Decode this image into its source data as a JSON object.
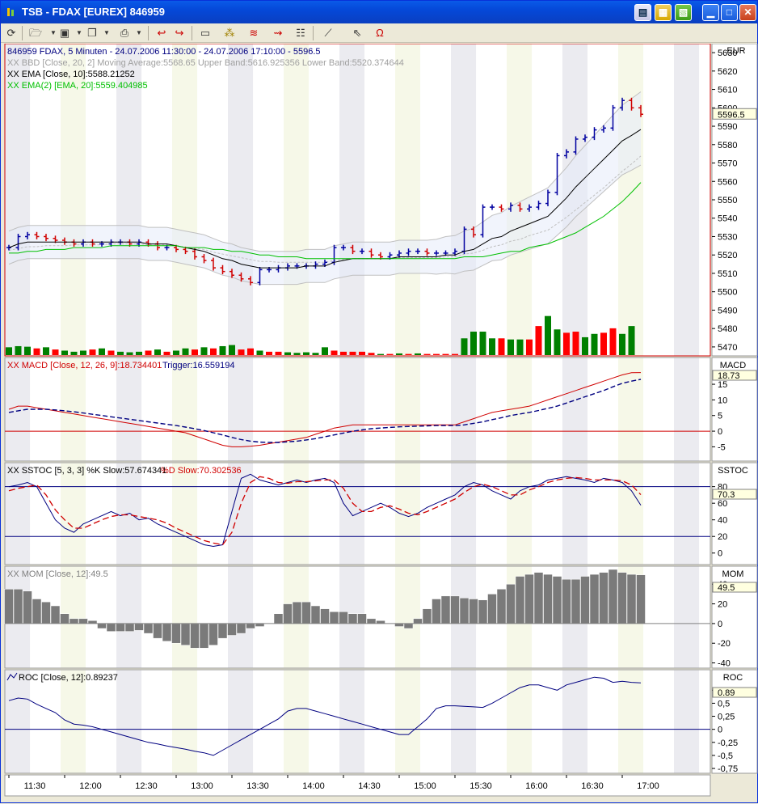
{
  "window": {
    "title": "TSB - FDAX [EUREX] 846959",
    "colors": {
      "titlebar": "#0548d8",
      "up": "#0000a0",
      "down": "#d00000",
      "vol_up": "#008000",
      "vol_down": "#ff0000",
      "ema": "#000000",
      "ema2": "#00c000",
      "macd": "#d00000",
      "trigger": "#000080",
      "band": "#e6ebfa"
    }
  },
  "toolbar": {
    "icons": [
      "refresh-icon",
      "open-folder-icon",
      "save-icon",
      "copy-icon",
      "print-icon",
      "chart-back-icon",
      "chart-forward-icon",
      "chart-type-icon",
      "indicator-icon",
      "drawing-icon",
      "trend-icon",
      "properties-icon",
      "line-tool-icon",
      "pointer-icon",
      "magnet-icon"
    ]
  },
  "main_panel": {
    "axis_unit": "EUR",
    "legend": [
      {
        "text": "846959  FDAX, 5 Minuten - 24.07.2006 11:30:00 - 24.07.2006 17:10:00 - 5596.5",
        "color": "#000080"
      },
      {
        "text": "XX BBD [Close, 20, 2] Moving Average:5568.65 Upper Band:5616.925356 Lower Band:5520.374644",
        "color": "#a0a0a0"
      },
      {
        "text": "XX EMA [Close, 10]:5588.21252",
        "color": "#000000"
      },
      {
        "text": "XX EMA(2) [EMA, 20]:5559.404985",
        "color": "#00c000"
      }
    ],
    "last_price": "5596.5",
    "y_ticks": [
      "5630",
      "5620",
      "5610",
      "5600",
      "5590",
      "5580",
      "5570",
      "5560",
      "5550",
      "5540",
      "5530",
      "5520",
      "5510",
      "5500",
      "5490",
      "5480",
      "5470"
    ]
  },
  "macd_panel": {
    "name": "MACD",
    "legend_macd": "XX MACD [Close, 12, 26, 9]:18.734401",
    "legend_trigger": "Trigger:16.559194",
    "last_value": "18.73",
    "y_ticks": [
      "15",
      "10",
      "5",
      "0",
      "-5"
    ]
  },
  "sstoc_panel": {
    "name": "SSTOC",
    "legend_k": "XX SSTOC [5, 3, 3] %K Slow:57.674341",
    "legend_d": "%D Slow:70.302536",
    "last_value": "70.3",
    "y_ticks": [
      "80",
      "60",
      "40",
      "20",
      "0"
    ]
  },
  "mom_panel": {
    "name": "MOM",
    "legend": "XX MOM [Close, 12]:49.5",
    "last_value": "49.5",
    "y_ticks": [
      "40",
      "20",
      "0",
      "-20",
      "-40"
    ]
  },
  "roc_panel": {
    "name": "ROC",
    "legend": "ROC [Close, 12]:0.89237",
    "last_value": "0.89",
    "y_ticks": [
      "0,75",
      "0,5",
      "0,25",
      "0",
      "-0,25",
      "-0,5",
      "-0,75"
    ]
  },
  "time_axis": [
    "11:30",
    "12:00",
    "12:30",
    "13:00",
    "13:30",
    "14:00",
    "14:30",
    "15:00",
    "15:30",
    "16:00",
    "16:30",
    "17:00"
  ],
  "chart_data": {
    "type": "line",
    "title": "FDAX, 5 Minuten",
    "x": [
      "11:30",
      "11:35",
      "11:40",
      "11:45",
      "11:50",
      "11:55",
      "12:00",
      "12:05",
      "12:10",
      "12:15",
      "12:20",
      "12:25",
      "12:30",
      "12:35",
      "12:40",
      "12:45",
      "12:50",
      "12:55",
      "13:00",
      "13:05",
      "13:10",
      "13:15",
      "13:20",
      "13:25",
      "13:30",
      "13:35",
      "13:40",
      "13:45",
      "13:50",
      "13:55",
      "14:00",
      "14:05",
      "14:10",
      "14:15",
      "14:20",
      "14:25",
      "14:30",
      "14:35",
      "14:40",
      "14:45",
      "14:50",
      "14:55",
      "15:00",
      "15:05",
      "15:10",
      "15:15",
      "15:20",
      "15:25",
      "15:30",
      "15:35",
      "15:40",
      "15:45",
      "15:50",
      "15:55",
      "16:00",
      "16:05",
      "16:10",
      "16:15",
      "16:20",
      "16:25",
      "16:30",
      "16:35",
      "16:40",
      "16:45",
      "16:50",
      "16:55",
      "17:00",
      "17:05",
      "17:10"
    ],
    "series": [
      {
        "name": "FDAX",
        "values": [
          5524,
          5530,
          5531,
          5530,
          5529,
          5528,
          5527,
          5526,
          5527,
          5526,
          5526,
          5527,
          5527,
          5526,
          5527,
          5526,
          5524,
          5524,
          5523,
          5522,
          5519,
          5517,
          5513,
          5511,
          5509,
          5507,
          5505,
          5512,
          5512,
          5513,
          5514,
          5514,
          5514,
          5515,
          5516,
          5524,
          5524,
          5522,
          5522,
          5520,
          5519,
          5520,
          5521,
          5522,
          5522,
          5521,
          5521,
          5521,
          5522,
          5534,
          5531,
          5546,
          5546,
          5545,
          5547,
          5545,
          5546,
          5548,
          5554,
          5574,
          5576,
          5583,
          5584,
          5588,
          5589,
          5600,
          5604,
          5600,
          5596.5
        ]
      },
      {
        "name": "EMA [Close, 10]",
        "values": [
          5524,
          5526,
          5527,
          5527,
          5527,
          5527,
          5527,
          5527,
          5527,
          5527,
          5527,
          5527,
          5527,
          5527,
          5527,
          5526,
          5526,
          5526,
          5525,
          5524,
          5523,
          5522,
          5520,
          5518,
          5517,
          5515,
          5514,
          5513,
          5513,
          5513,
          5513,
          5513,
          5514,
          5514,
          5514,
          5516,
          5517,
          5518,
          5518,
          5518,
          5518,
          5518,
          5519,
          5519,
          5519,
          5519,
          5519,
          5520,
          5520,
          5522,
          5523,
          5526,
          5529,
          5530,
          5533,
          5535,
          5537,
          5539,
          5541,
          5546,
          5551,
          5557,
          5562,
          5567,
          5572,
          5577,
          5582,
          5585,
          5588.21
        ]
      },
      {
        "name": "EMA(2) [EMA, 20]",
        "values": [
          5521,
          5521,
          5522,
          5522,
          5523,
          5523,
          5523,
          5524,
          5524,
          5524,
          5524,
          5525,
          5525,
          5525,
          5525,
          5525,
          5525,
          5525,
          5525,
          5524,
          5524,
          5524,
          5523,
          5523,
          5522,
          5522,
          5521,
          5520,
          5520,
          5519,
          5519,
          5519,
          5518,
          5518,
          5518,
          5518,
          5518,
          5518,
          5518,
          5518,
          5518,
          5518,
          5518,
          5518,
          5518,
          5518,
          5518,
          5518,
          5518,
          5519,
          5519,
          5519,
          5520,
          5521,
          5522,
          5522,
          5524,
          5525,
          5526,
          5528,
          5530,
          5532,
          5535,
          5538,
          5541,
          5545,
          5549,
          5554,
          5559.4
        ]
      },
      {
        "name": "MACD",
        "values": [
          7,
          8,
          8,
          7.5,
          7,
          6.5,
          6,
          5.5,
          5,
          4.5,
          4,
          3.5,
          3,
          2.5,
          2,
          1.5,
          1,
          0.5,
          0,
          -0.5,
          -1.5,
          -2.5,
          -3.5,
          -4.5,
          -5,
          -5,
          -4.8,
          -4.5,
          -4,
          -3.5,
          -3,
          -2.5,
          -2,
          -1,
          0,
          1,
          1.5,
          2,
          2,
          2,
          2,
          2,
          2,
          2,
          2,
          2,
          2,
          2,
          2,
          3,
          4,
          5,
          6,
          6.5,
          7,
          7.5,
          8,
          9,
          10,
          11,
          12,
          13,
          14,
          15,
          16,
          17,
          18,
          18.7,
          18.73
        ]
      },
      {
        "name": "Trigger",
        "values": [
          6,
          6.5,
          7,
          7,
          7,
          6.8,
          6.5,
          6.2,
          5.8,
          5.4,
          5,
          4.6,
          4.2,
          3.8,
          3.4,
          3,
          2.6,
          2.2,
          1.8,
          1.3,
          0.8,
          0.2,
          -0.5,
          -1.2,
          -2,
          -2.7,
          -3.2,
          -3.5,
          -3.6,
          -3.6,
          -3.4,
          -3.2,
          -2.8,
          -2.4,
          -1.8,
          -1.2,
          -0.6,
          0,
          0.4,
          0.8,
          1,
          1.2,
          1.4,
          1.5,
          1.6,
          1.7,
          1.8,
          1.8,
          1.8,
          2,
          2.5,
          3,
          3.7,
          4.3,
          5,
          5.5,
          6,
          6.6,
          7.3,
          8,
          9,
          10,
          11,
          12,
          13,
          14.2,
          15.3,
          16,
          16.56
        ]
      },
      {
        "name": "%K Slow",
        "values": [
          80,
          82,
          85,
          80,
          60,
          40,
          30,
          25,
          35,
          40,
          45,
          50,
          45,
          48,
          40,
          42,
          35,
          30,
          25,
          20,
          15,
          10,
          8,
          10,
          50,
          90,
          95,
          88,
          85,
          82,
          85,
          88,
          85,
          88,
          90,
          85,
          60,
          45,
          50,
          55,
          60,
          55,
          48,
          44,
          48,
          55,
          60,
          65,
          70,
          80,
          85,
          82,
          75,
          70,
          65,
          75,
          80,
          82,
          88,
          90,
          92,
          90,
          88,
          85,
          90,
          88,
          85,
          75,
          57.67
        ]
      },
      {
        "name": "%D Slow",
        "values": [
          75,
          78,
          80,
          82,
          70,
          52,
          40,
          30,
          30,
          35,
          40,
          44,
          46,
          46,
          44,
          42,
          40,
          36,
          30,
          25,
          20,
          15,
          12,
          10,
          25,
          60,
          85,
          92,
          90,
          85,
          84,
          86,
          86,
          87,
          88,
          88,
          78,
          60,
          50,
          50,
          55,
          57,
          53,
          48,
          46,
          50,
          55,
          60,
          65,
          73,
          80,
          83,
          80,
          75,
          70,
          70,
          76,
          80,
          85,
          88,
          90,
          91,
          90,
          88,
          88,
          88,
          87,
          82,
          70.3
        ]
      },
      {
        "name": "MOM [Close, 12]",
        "values": [
          35,
          35,
          33,
          25,
          22,
          18,
          10,
          5,
          5,
          3,
          -5,
          -8,
          -8,
          -8,
          -7,
          -10,
          -15,
          -18,
          -20,
          -22,
          -25,
          -25,
          -22,
          -15,
          -12,
          -10,
          -5,
          -3,
          0,
          10,
          20,
          22,
          22,
          18,
          15,
          12,
          12,
          10,
          10,
          5,
          3,
          0,
          -3,
          -5,
          5,
          15,
          25,
          28,
          28,
          26,
          25,
          24,
          30,
          35,
          40,
          48,
          50,
          52,
          50,
          48,
          45,
          45,
          48,
          50,
          52,
          55,
          52,
          50,
          49.5
        ]
      },
      {
        "name": "ROC [Close, 12]",
        "values": [
          0.55,
          0.6,
          0.58,
          0.48,
          0.4,
          0.32,
          0.18,
          0.1,
          0.08,
          0.05,
          0,
          -0.05,
          -0.1,
          -0.15,
          -0.2,
          -0.25,
          -0.28,
          -0.32,
          -0.35,
          -0.38,
          -0.42,
          -0.45,
          -0.5,
          -0.4,
          -0.3,
          -0.2,
          -0.1,
          0,
          0.1,
          0.2,
          0.35,
          0.4,
          0.4,
          0.35,
          0.3,
          0.25,
          0.2,
          0.15,
          0.1,
          0.05,
          0,
          -0.05,
          -0.1,
          -0.1,
          0.05,
          0.2,
          0.4,
          0.45,
          0.45,
          0.44,
          0.43,
          0.42,
          0.5,
          0.6,
          0.7,
          0.8,
          0.85,
          0.85,
          0.8,
          0.75,
          0.85,
          0.9,
          0.95,
          1.0,
          0.98,
          0.9,
          0.92,
          0.9,
          0.89
        ]
      }
    ],
    "volume": [
      14,
      16,
      15,
      12,
      14,
      10,
      8,
      6,
      8,
      10,
      12,
      8,
      6,
      5,
      6,
      8,
      10,
      6,
      8,
      12,
      10,
      14,
      12,
      16,
      18,
      10,
      12,
      8,
      6,
      6,
      5,
      4,
      5,
      4,
      14,
      8,
      6,
      6,
      6,
      4,
      2,
      2,
      3,
      2,
      3,
      2,
      2,
      2,
      2,
      30,
      42,
      42,
      30,
      30,
      28,
      28,
      28,
      52,
      70,
      46,
      40,
      42,
      32,
      38,
      40,
      48,
      38,
      52,
      0
    ],
    "volume_up": [
      true,
      true,
      true,
      false,
      true,
      false,
      true,
      true,
      true,
      false,
      true,
      false,
      true,
      true,
      true,
      false,
      true,
      false,
      true,
      true,
      false,
      true,
      false,
      true,
      true,
      false,
      false,
      true,
      false,
      false,
      true,
      true,
      true,
      true,
      true,
      false,
      false,
      false,
      false,
      false,
      true,
      false,
      true,
      false,
      true,
      false,
      false,
      false,
      false,
      true,
      true,
      true,
      true,
      false,
      true,
      true,
      false,
      false,
      true,
      true,
      false,
      false,
      true,
      true,
      false,
      false,
      true,
      true,
      false
    ],
    "ylim_price": [
      5466,
      5634
    ],
    "ylim_macd": [
      -8,
      22
    ],
    "ylim_sstoc": [
      -10,
      105
    ],
    "ylim_mom": [
      -42,
      55
    ],
    "ylim_roc": [
      -0.78,
      1.08
    ]
  }
}
